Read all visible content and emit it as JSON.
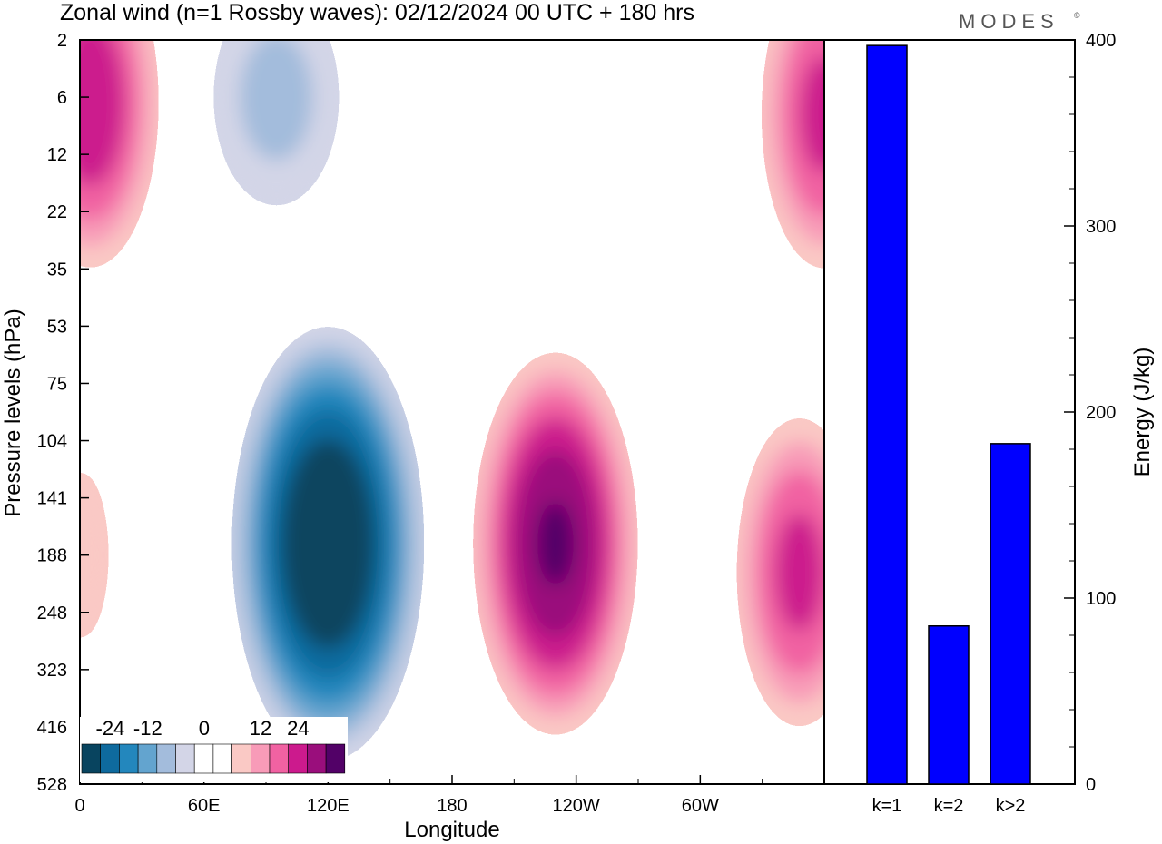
{
  "title": "Zonal wind (n=1 Rossby waves):  02/12/2024  00 UTC  + 180 hrs",
  "logo": "MODES",
  "logo_mark": "©",
  "colors": {
    "neg": [
      "#08445f",
      "#0e6a9e",
      "#2387bd",
      "#63a4cf",
      "#a3bcdc",
      "#d3d5e7"
    ],
    "pos": [
      "#fac9c5",
      "#f89bb8",
      "#f162a2",
      "#cc1a8d",
      "#9a0e7c",
      "#520167"
    ],
    "bars": "#0000ff"
  },
  "chart_data": [
    {
      "type": "heatmap",
      "xlabel": "Longitude",
      "ylabel": "Pressure levels (hPa)",
      "x_ticks": [
        "0",
        "60E",
        "120E",
        "180",
        "120W",
        "60W"
      ],
      "x_tick_degrees": [
        0,
        60,
        120,
        180,
        240,
        300
      ],
      "x_range": [
        0,
        360
      ],
      "y_ticks": [
        "2",
        "6",
        "12",
        "22",
        "35",
        "53",
        "75",
        "104",
        "141",
        "188",
        "248",
        "323",
        "416",
        "528"
      ],
      "y_axis": "level index, top to bottom",
      "colorbar": {
        "labels": [
          "-24",
          "-12",
          "0",
          "12",
          "24"
        ],
        "bins": 14
      },
      "features": [
        {
          "sign": "positive",
          "lon": 5,
          "level": 1.1,
          "peak": 18
        },
        {
          "sign": "negative",
          "lon": 95,
          "level": 1.0,
          "peak": -8
        },
        {
          "sign": "negative",
          "lon": 120,
          "level": 8.8,
          "peak": -28
        },
        {
          "sign": "positive",
          "lon": 230,
          "level": 8.8,
          "peak": 23
        },
        {
          "sign": "positive",
          "lon": 348,
          "level": 9.3,
          "peak": 16
        },
        {
          "sign": "positive",
          "lon": 360,
          "level": 1.3,
          "peak": 16
        },
        {
          "sign": "positive",
          "lon": 0,
          "level": 9.0,
          "peak": 5
        }
      ]
    },
    {
      "type": "bar",
      "categories": [
        "k=1",
        "k=2",
        "k>2"
      ],
      "values": [
        397,
        85,
        183
      ],
      "ylabel": "Energy (J/kg)",
      "ylim": [
        0,
        400
      ],
      "y_ticks": [
        "0",
        "100",
        "200",
        "300",
        "400"
      ]
    }
  ]
}
